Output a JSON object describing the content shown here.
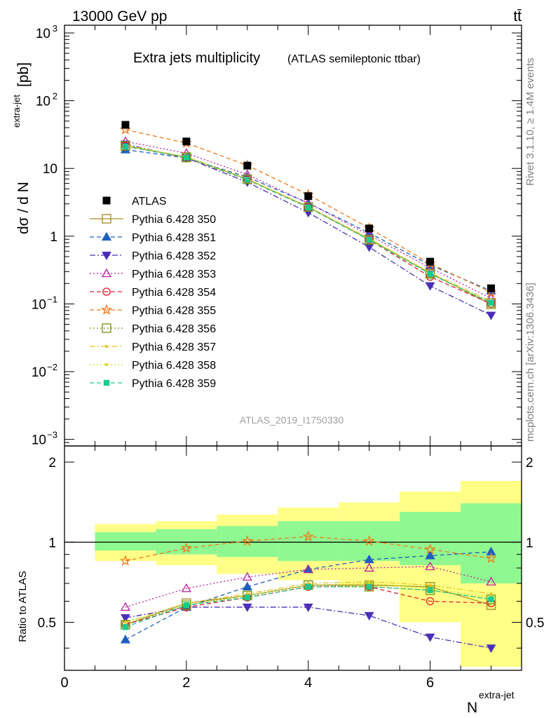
{
  "header": {
    "energy_label": "13000 GeV pp",
    "process_label": "tt̄"
  },
  "side_labels": {
    "rivet": "Rivet 3.1.10, ≥ 1.4M events",
    "mcplots": "mcplots.cern.ch [arXiv:1306.3436]"
  },
  "chart_data": {
    "type": "scatter",
    "title": "Extra jets multiplicity",
    "subtitle": "(ATLAS semileptonic ttbar)",
    "watermark": "ATLAS_2019_I1750330",
    "xlabel": "N",
    "xlabel_sup": "extra-jet",
    "ylabel": "dσ / d N",
    "ylabel_sup": "extra-jet",
    "ylabel_unit": "[pb]",
    "ratio_ylabel": "Ratio to ATLAS",
    "xlim": [
      0,
      7.5
    ],
    "ylim": [
      0.0008,
      1300
    ],
    "yscale": "log",
    "ratio_ylim": [
      0.33,
      2.3
    ],
    "x_ticks": [
      "0",
      "2",
      "4",
      "6"
    ],
    "y_ticks": [
      {
        "base": "10",
        "exp": "3"
      },
      {
        "base": "10",
        "exp": "2"
      },
      {
        "base": "10",
        "exp": ""
      },
      {
        "base": "1",
        "exp": ""
      },
      {
        "base": "10",
        "exp": "−1"
      },
      {
        "base": "10",
        "exp": "−2"
      },
      {
        "base": "10",
        "exp": "−3"
      }
    ],
    "ratio_ticks_left": [
      "0.5",
      "1",
      "2"
    ],
    "ratio_ticks_right": [
      "0.5",
      "1",
      "2"
    ],
    "legend_position": "left-middle",
    "x": [
      1,
      2,
      3,
      4,
      5,
      6,
      7
    ],
    "band_edges": [
      0.5,
      1.5,
      2.5,
      3.5,
      4.5,
      5.5,
      6.5,
      7.5
    ],
    "band_green": [
      [
        0.93,
        1.09
      ],
      [
        0.9,
        1.12
      ],
      [
        0.88,
        1.15
      ],
      [
        0.85,
        1.2
      ],
      [
        0.85,
        1.2
      ],
      [
        0.82,
        1.3
      ],
      [
        0.7,
        1.4
      ]
    ],
    "band_yellow": [
      [
        0.85,
        1.17
      ],
      [
        0.82,
        1.2
      ],
      [
        0.76,
        1.27
      ],
      [
        0.72,
        1.35
      ],
      [
        0.68,
        1.41
      ],
      [
        0.5,
        1.55
      ],
      [
        0.34,
        1.7
      ]
    ],
    "data": {
      "name": "ATLAS",
      "values": [
        44,
        25,
        11,
        3.9,
        1.3,
        0.42,
        0.17
      ],
      "color": "#000000"
    },
    "series": [
      {
        "name": "Pythia 6.428 350",
        "color": "#a7912a",
        "marker": "square-open",
        "dash": "",
        "ratio": [
          0.49,
          0.59,
          0.63,
          0.69,
          0.69,
          0.68,
          0.58
        ]
      },
      {
        "name": "Pythia 6.428 351",
        "color": "#1f5fbf",
        "marker": "triangle-up",
        "dash": "6,4",
        "ratio": [
          0.43,
          0.57,
          0.68,
          0.79,
          0.86,
          0.89,
          0.92
        ]
      },
      {
        "name": "Pythia 6.428 352",
        "color": "#4b2fb7",
        "marker": "triangle-down",
        "dash": "8,3,2,3",
        "ratio": [
          0.52,
          0.57,
          0.57,
          0.57,
          0.53,
          0.44,
          0.4
        ]
      },
      {
        "name": "Pythia 6.428 353",
        "color": "#bb1fa0",
        "marker": "triangle-open",
        "dash": "2,3",
        "ratio": [
          0.57,
          0.67,
          0.74,
          0.79,
          0.8,
          0.81,
          0.71
        ]
      },
      {
        "name": "Pythia 6.428 354",
        "color": "#e0202a",
        "marker": "circle-open",
        "dash": "6,4",
        "ratio": [
          0.49,
          0.57,
          0.62,
          0.68,
          0.68,
          0.6,
          0.59
        ]
      },
      {
        "name": "Pythia 6.428 355",
        "color": "#f07818",
        "marker": "star-open",
        "dash": "6,4",
        "ratio": [
          0.85,
          0.95,
          1.01,
          1.05,
          1.01,
          0.94,
          0.87
        ]
      },
      {
        "name": "Pythia 6.428 356",
        "color": "#7e9a1a",
        "marker": "square-open",
        "dash": "2,3",
        "ratio": [
          0.49,
          0.58,
          0.63,
          0.69,
          0.68,
          0.66,
          0.61
        ]
      },
      {
        "name": "Pythia 6.428 357",
        "color": "#e3c72a",
        "marker": "small-dot",
        "dash": "8,3,2,3",
        "ratio": [
          0.5,
          0.59,
          0.64,
          0.7,
          0.71,
          0.69,
          0.64
        ]
      },
      {
        "name": "Pythia 6.428 358",
        "color": "#cfe11e",
        "marker": "small-dot",
        "dash": "2,3",
        "ratio": [
          0.5,
          0.58,
          0.63,
          0.69,
          0.7,
          0.67,
          0.62
        ]
      },
      {
        "name": "Pythia 6.428 359",
        "color": "#1ec98f",
        "marker": "square-filled",
        "dash": "6,4",
        "ratio": [
          0.48,
          0.58,
          0.62,
          0.68,
          0.68,
          0.66,
          0.61
        ]
      }
    ]
  }
}
